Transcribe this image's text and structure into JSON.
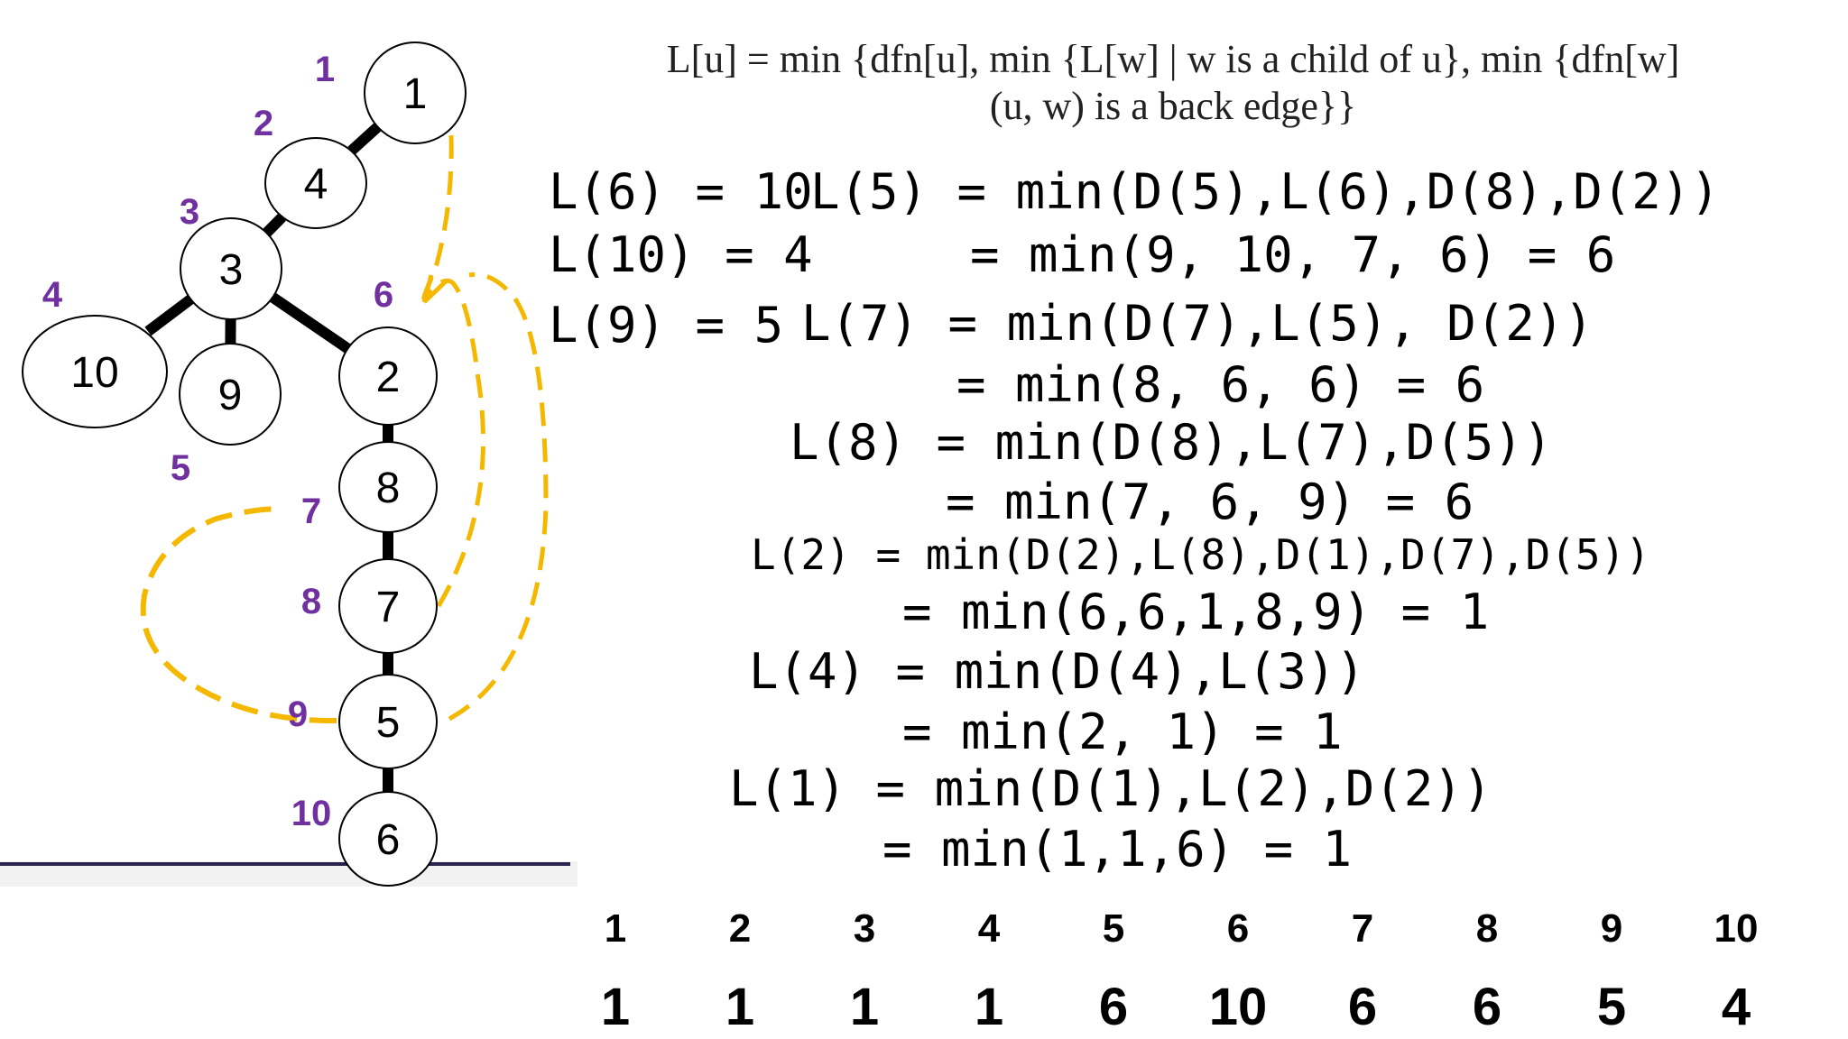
{
  "formula": {
    "line1": "L[u]   =   min {dfn[u],  min {L[w] | w is a child of u},  min {dfn[w]",
    "line2": "(u, w) is  a  back  edge}}"
  },
  "tree": {
    "nodes": [
      {
        "id": "1",
        "dfn": "1"
      },
      {
        "id": "4",
        "dfn": "2"
      },
      {
        "id": "3",
        "dfn": "3"
      },
      {
        "id": "10",
        "dfn": "4"
      },
      {
        "id": "9",
        "dfn": "5"
      },
      {
        "id": "2",
        "dfn": "6"
      },
      {
        "id": "8",
        "dfn": "7"
      },
      {
        "id": "7",
        "dfn": "8"
      },
      {
        "id": "5",
        "dfn": "9"
      },
      {
        "id": "6",
        "dfn": "10"
      }
    ],
    "colors": {
      "tree_edge": "#000000",
      "back_edge": "#f5b800",
      "dfn_label": "#7030a0",
      "baseline": "#2a2350"
    }
  },
  "calc": {
    "l6": "L(6) = 10",
    "l10": "L(10) = 4",
    "l9": "L(9) = 5",
    "l5a": "L(5) = min(D(5),L(6),D(8),D(2))",
    "l5b": "= min(9, 10, 7, 6) = 6",
    "l7a": "L(7) = min(D(7),L(5), D(2))",
    "l7b": "= min(8, 6, 6) = 6",
    "l8a": "L(8) = min(D(8),L(7),D(5))",
    "l8b": "= min(7, 6, 9) = 6",
    "l2a": "L(2) = min(D(2),L(8),D(1),D(7),D(5))",
    "l2b": "= min(6,6,1,8,9) = 1",
    "l4a": "L(4) = min(D(4),L(3))",
    "l4b": "= min(2, 1) = 1",
    "l1a": "L(1) = min(D(1),L(2),D(2))",
    "l1b": "= min(1,1,6) = 1"
  },
  "table": {
    "indices": [
      "1",
      "2",
      "3",
      "4",
      "5",
      "6",
      "7",
      "8",
      "9",
      "10"
    ],
    "values": [
      "1",
      "1",
      "1",
      "1",
      "6",
      "10",
      "6",
      "6",
      "5",
      "4"
    ]
  }
}
